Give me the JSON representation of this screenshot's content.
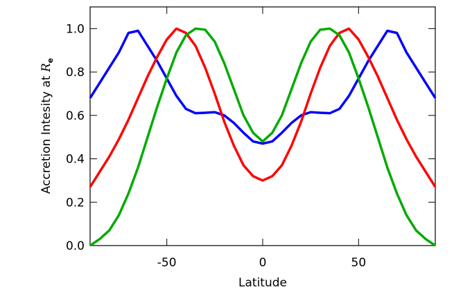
{
  "chart_data": {
    "type": "line",
    "xlabel": "Latitude",
    "ylabel": "Accretion Intesity at",
    "ylabel_symbol": "R",
    "ylabel_subscript": "e",
    "x": [
      -90,
      -85,
      -80,
      -75,
      -70,
      -65,
      -60,
      -55,
      -50,
      -45,
      -40,
      -35,
      -30,
      -25,
      -20,
      -15,
      -10,
      -5,
      0,
      5,
      10,
      15,
      20,
      25,
      30,
      35,
      40,
      45,
      50,
      55,
      60,
      65,
      70,
      75,
      80,
      85,
      90
    ],
    "series": [
      {
        "color": "#0000ff",
        "values": [
          0.68,
          0.75,
          0.82,
          0.89,
          0.98,
          0.99,
          0.92,
          0.85,
          0.77,
          0.69,
          0.63,
          0.61,
          0.612,
          0.615,
          0.6,
          0.565,
          0.52,
          0.48,
          0.47,
          0.48,
          0.52,
          0.565,
          0.6,
          0.615,
          0.612,
          0.61,
          0.63,
          0.69,
          0.77,
          0.85,
          0.92,
          0.99,
          0.98,
          0.89,
          0.82,
          0.75,
          0.68
        ]
      },
      {
        "color": "#ff0000",
        "values": [
          0.27,
          0.34,
          0.41,
          0.49,
          0.58,
          0.68,
          0.78,
          0.87,
          0.95,
          1.0,
          0.98,
          0.92,
          0.82,
          0.7,
          0.57,
          0.46,
          0.37,
          0.32,
          0.3,
          0.32,
          0.37,
          0.46,
          0.57,
          0.7,
          0.82,
          0.92,
          0.98,
          1.0,
          0.95,
          0.87,
          0.78,
          0.68,
          0.58,
          0.49,
          0.41,
          0.34,
          0.27
        ]
      },
      {
        "color": "#00aa00",
        "values": [
          0.0,
          0.03,
          0.07,
          0.14,
          0.24,
          0.36,
          0.5,
          0.64,
          0.77,
          0.89,
          0.97,
          1.0,
          0.995,
          0.94,
          0.84,
          0.72,
          0.6,
          0.52,
          0.48,
          0.52,
          0.6,
          0.72,
          0.84,
          0.94,
          0.995,
          1.0,
          0.97,
          0.89,
          0.77,
          0.64,
          0.5,
          0.36,
          0.24,
          0.14,
          0.07,
          0.03,
          0.0
        ]
      }
    ],
    "xlim": [
      -90,
      90
    ],
    "ylim": [
      0,
      1.1
    ],
    "xticks": [
      -50,
      0,
      50
    ],
    "yticks": [
      {
        "value": 0,
        "label": "0.0"
      },
      {
        "value": 0.2,
        "label": "0.2"
      },
      {
        "value": 0.4,
        "label": "0.4"
      },
      {
        "value": 0.6,
        "label": "0.6"
      },
      {
        "value": 0.8,
        "label": "0.8"
      },
      {
        "value": 1,
        "label": "1.0"
      }
    ]
  }
}
